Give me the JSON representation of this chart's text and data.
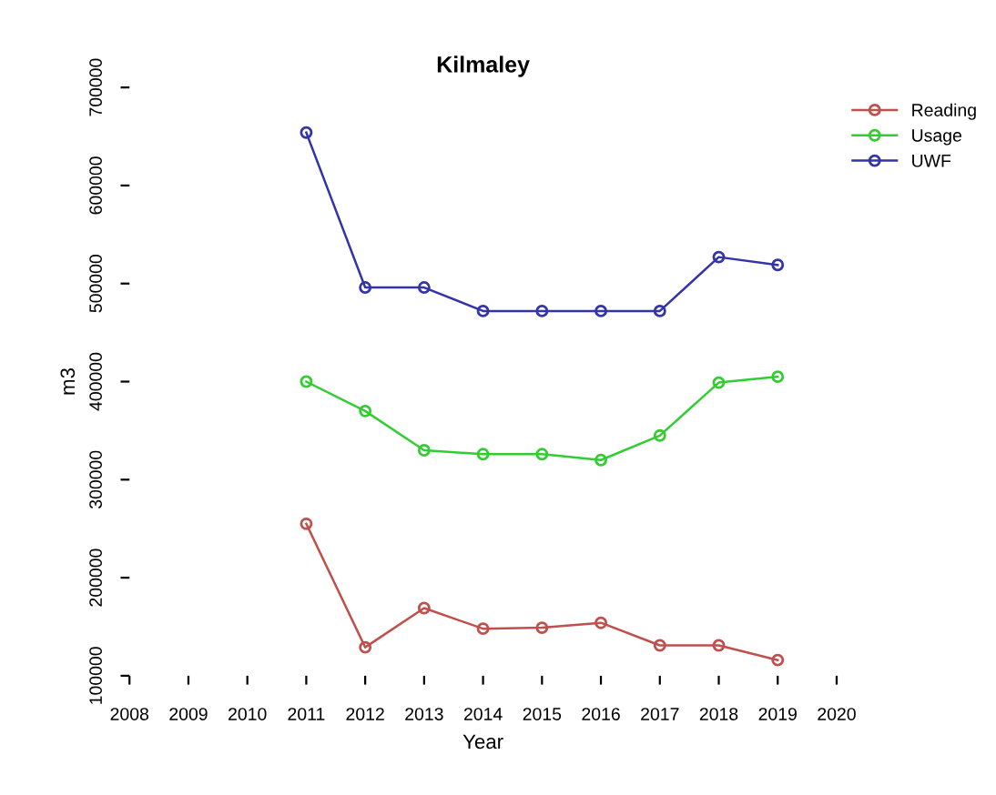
{
  "chart_data": {
    "type": "line",
    "title": "Kilmaley",
    "xlabel": "Year",
    "ylabel": "m3",
    "x": [
      2011,
      2012,
      2013,
      2014,
      2015,
      2016,
      2017,
      2018,
      2019
    ],
    "series": [
      {
        "name": "Reading",
        "color": "#c0504d",
        "values": [
          255000,
          129000,
          169000,
          148000,
          149000,
          154000,
          131000,
          131000,
          116000
        ]
      },
      {
        "name": "Usage",
        "color": "#33cc33",
        "values": [
          400000,
          370000,
          330000,
          326000,
          326000,
          320000,
          345000,
          399000,
          405000
        ]
      },
      {
        "name": "UWF",
        "color": "#3333aa",
        "values": [
          654000,
          496000,
          496000,
          472000,
          472000,
          472000,
          472000,
          527000,
          519000
        ]
      }
    ],
    "xlim": [
      2008,
      2020
    ],
    "ylim": [
      100000,
      700000
    ],
    "xticks": [
      2008,
      2009,
      2010,
      2011,
      2012,
      2013,
      2014,
      2015,
      2016,
      2017,
      2018,
      2019,
      2020
    ],
    "yticks": [
      100000,
      200000,
      300000,
      400000,
      500000,
      600000,
      700000
    ],
    "marker": "circle",
    "line_style": "solid",
    "grid": false,
    "legend": "top right"
  }
}
